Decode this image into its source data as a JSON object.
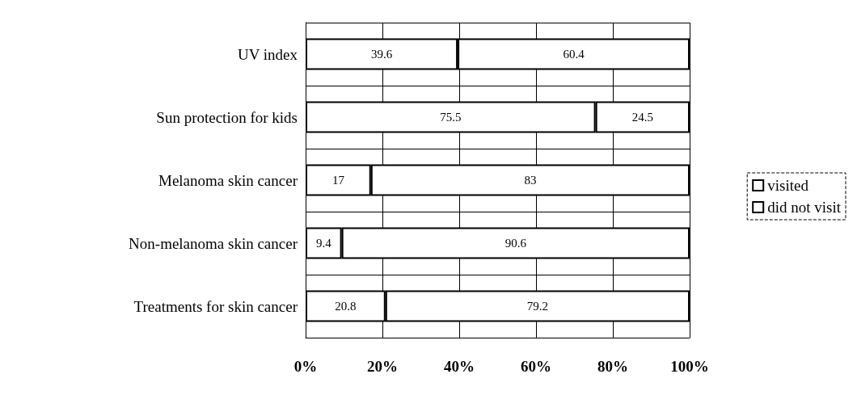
{
  "chart_data": {
    "type": "bar",
    "orientation": "horizontal",
    "stacked": true,
    "categories": [
      "UV index",
      "Sun protection for kids",
      "Melanoma skin cancer",
      "Non-melanoma skin cancer",
      "Treatments for skin cancer"
    ],
    "series": [
      {
        "name": "visited",
        "color": "#ffffff",
        "values": [
          39.6,
          75.5,
          17,
          9.4,
          20.8
        ]
      },
      {
        "name": "did not visit",
        "color": "#ffffff",
        "values": [
          60.4,
          24.5,
          83,
          90.6,
          79.2
        ]
      }
    ],
    "xlim": [
      0,
      100
    ],
    "xticks": [
      {
        "value": 0,
        "label": "0%"
      },
      {
        "value": 20,
        "label": "20%"
      },
      {
        "value": 40,
        "label": "40%"
      },
      {
        "value": 60,
        "label": "60%"
      },
      {
        "value": 80,
        "label": "80%"
      },
      {
        "value": 100,
        "label": "100%"
      }
    ],
    "data_labels": true,
    "grid": true,
    "legend": "right"
  }
}
